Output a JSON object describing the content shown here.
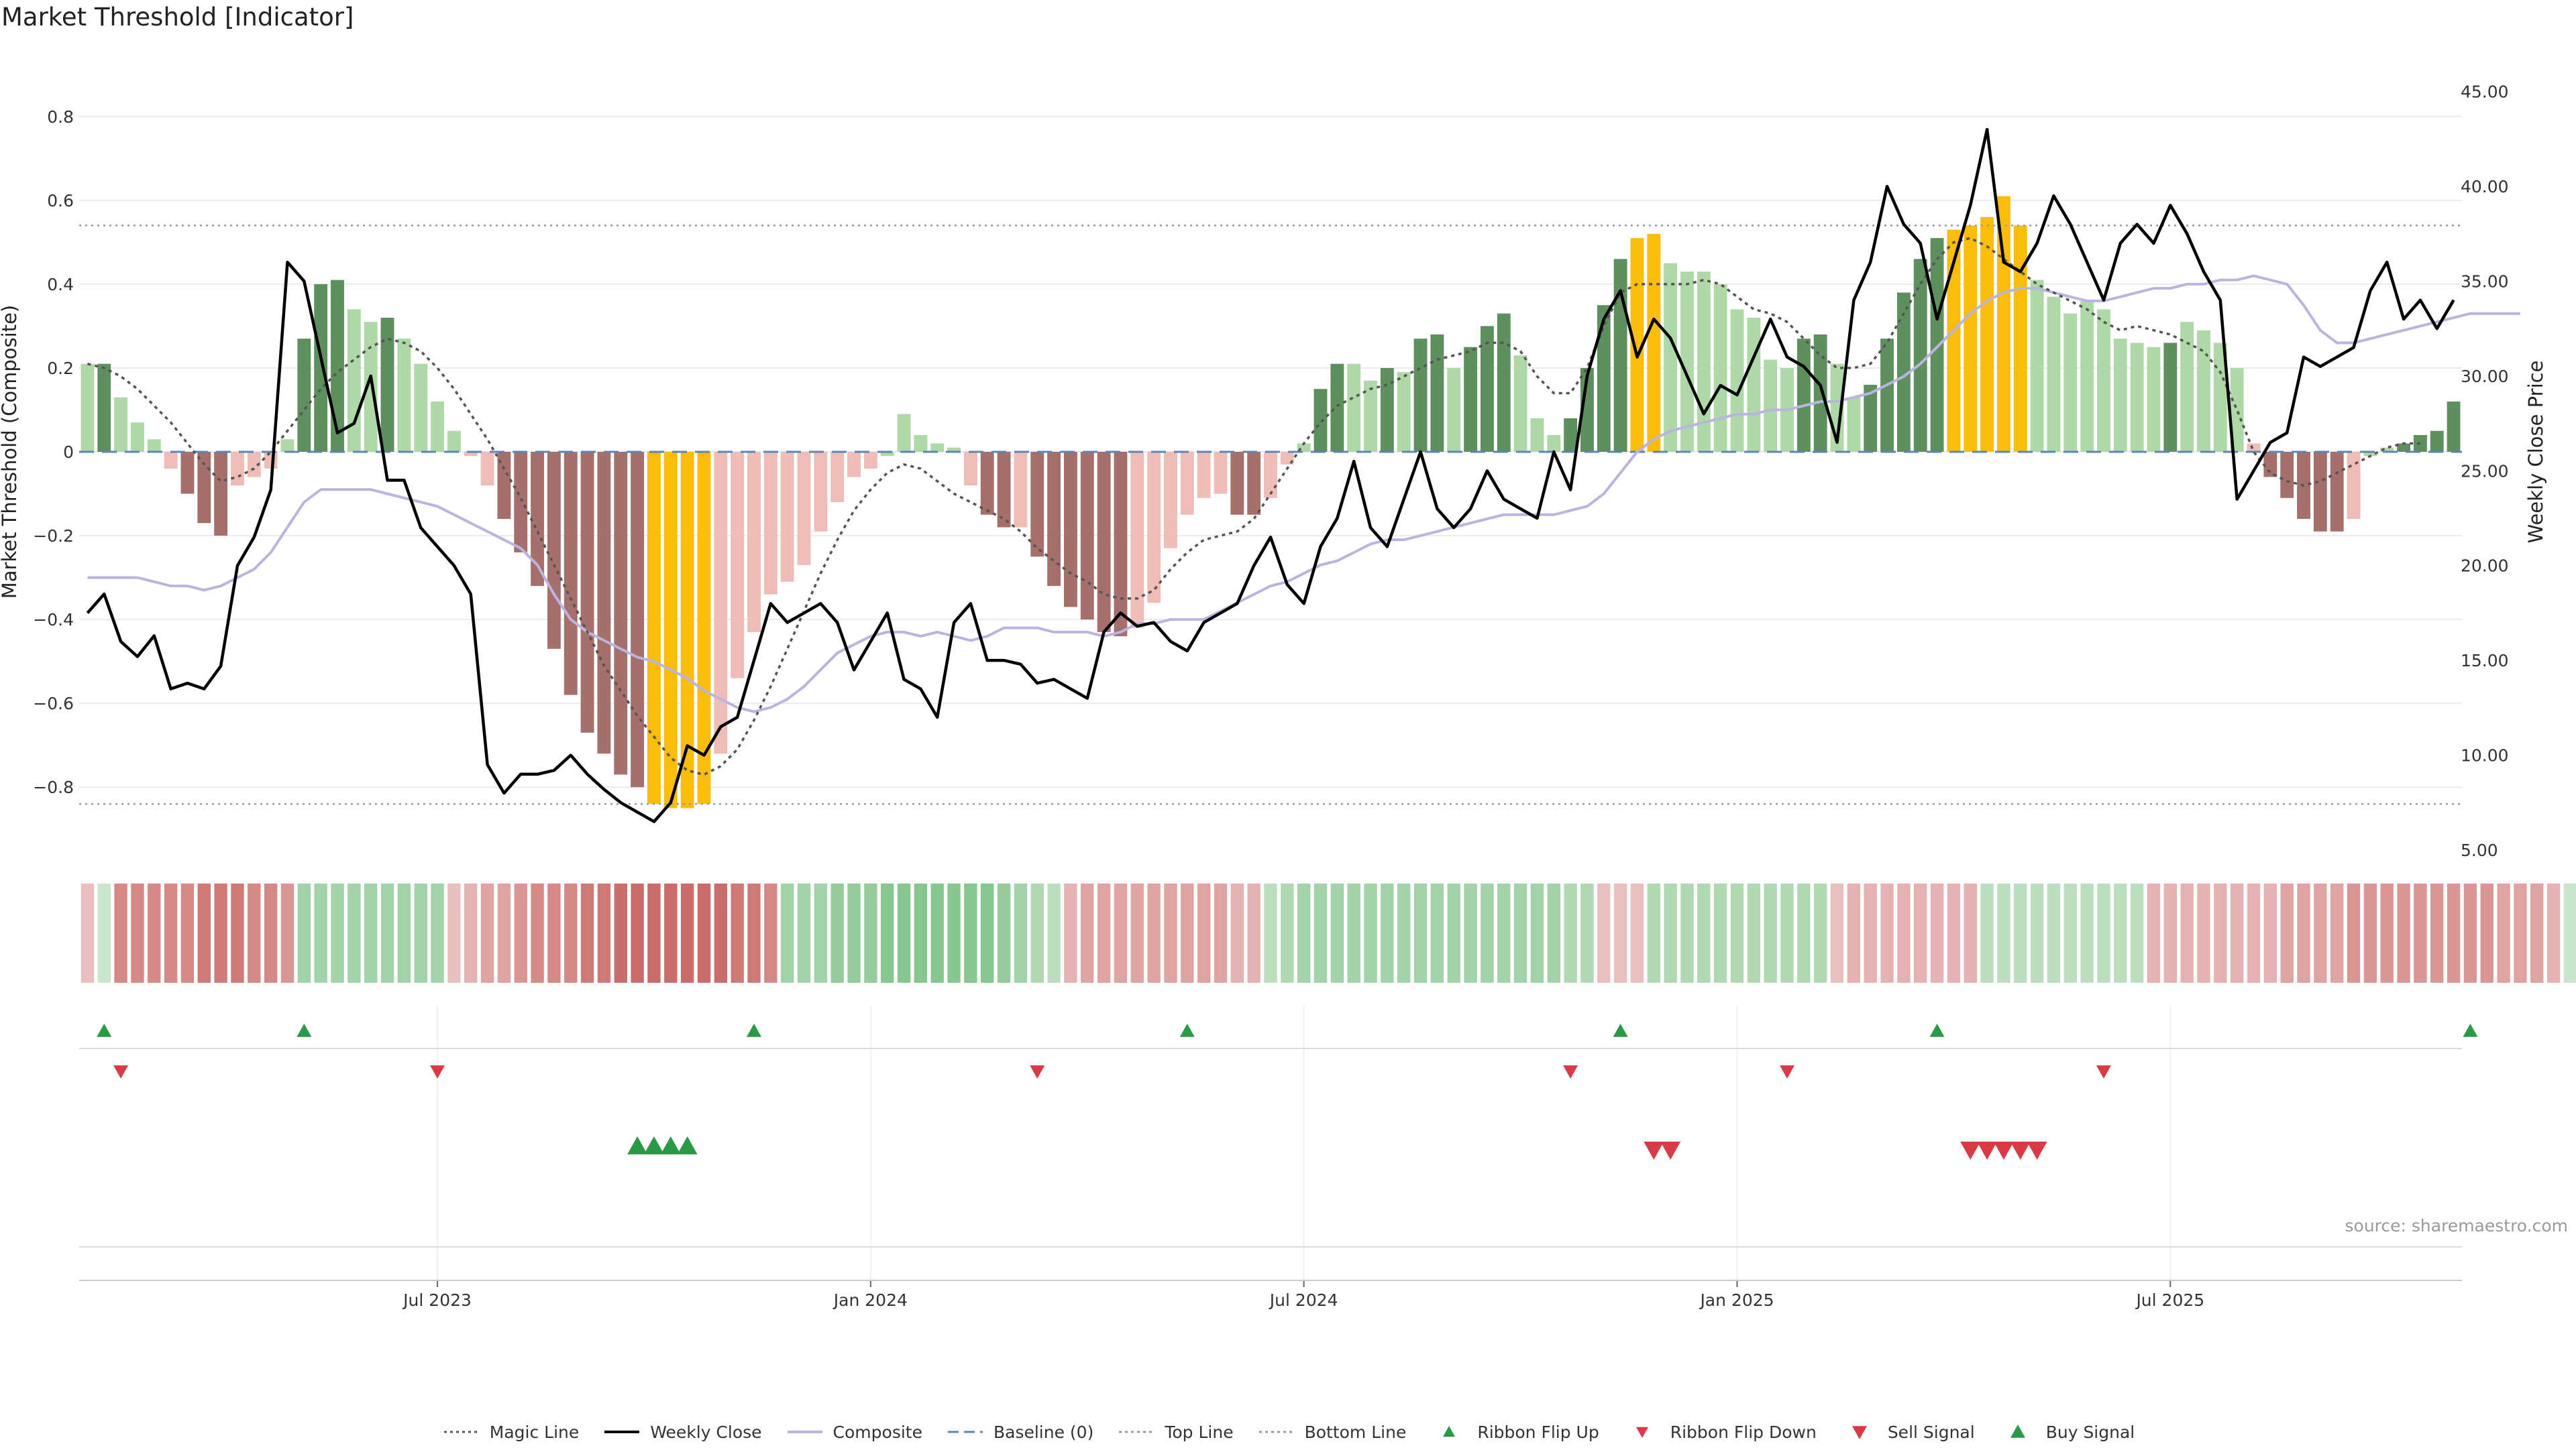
{
  "title": "Market Threshold [Indicator]",
  "source_note": "source: sharemaestro.com",
  "chart_data": {
    "type": "bar",
    "ylabel_left": "Market Threshold (Composite)",
    "ylabel_right": "Weekly Close Price",
    "ylim_left": [
      -0.95,
      0.95
    ],
    "ylim_right": [
      5,
      47
    ],
    "yticks_left": [
      "0.8",
      "0.6",
      "0.4",
      "0.2",
      "0",
      "−0.2",
      "−0.4",
      "−0.6",
      "−0.8"
    ],
    "yticks_left_values": [
      0.8,
      0.6,
      0.4,
      0.2,
      0,
      -0.2,
      -0.4,
      -0.6,
      -0.8
    ],
    "yticks_right": [
      "45.00",
      "40.00",
      "35.00",
      "30.00",
      "25.00",
      "20.00",
      "15.00",
      "10.00",
      "5.00"
    ],
    "yticks_right_values": [
      45,
      40,
      35,
      30,
      25,
      20,
      15,
      10,
      5
    ],
    "xticks": [
      "Jul 2023",
      "Jan 2024",
      "Jul 2024",
      "Jan 2025",
      "Jul 2025"
    ],
    "xtick_week_index": [
      21,
      47,
      73,
      99,
      125
    ],
    "top_line": 0.54,
    "bottom_line": -0.84,
    "baseline": 0,
    "colors": {
      "strong_pos": "#5e8f5e",
      "weak_pos": "#aed8a6",
      "strong_neg": "#a56f6c",
      "weak_neg": "#eebdb8",
      "extreme": "#fbbd0b",
      "close_line": "#000000",
      "composite_line": "#b9b4e0",
      "magic_line": "#555555",
      "baseline": "#5b86b5",
      "ref_line": "#999999",
      "buy": "#2b9a47",
      "sell": "#d93a45"
    },
    "composite_bars": [
      0.21,
      0.21,
      0.13,
      0.07,
      0.03,
      -0.04,
      -0.1,
      -0.17,
      -0.2,
      -0.08,
      -0.06,
      -0.04,
      0.03,
      0.27,
      0.4,
      0.41,
      0.34,
      0.31,
      0.32,
      0.27,
      0.21,
      0.12,
      0.05,
      -0.01,
      -0.08,
      -0.16,
      -0.24,
      -0.32,
      -0.47,
      -0.58,
      -0.67,
      -0.72,
      -0.77,
      -0.8,
      -0.84,
      -0.85,
      -0.85,
      -0.84,
      -0.72,
      -0.54,
      -0.43,
      -0.34,
      -0.31,
      -0.27,
      -0.19,
      -0.12,
      -0.06,
      -0.04,
      -0.01,
      0.09,
      0.04,
      0.02,
      0.01,
      -0.08,
      -0.15,
      -0.18,
      -0.18,
      -0.25,
      -0.32,
      -0.37,
      -0.4,
      -0.43,
      -0.44,
      -0.42,
      -0.36,
      -0.23,
      -0.15,
      -0.11,
      -0.1,
      -0.15,
      -0.15,
      -0.11,
      -0.03,
      0.02,
      0.15,
      0.21,
      0.21,
      0.17,
      0.2,
      0.19,
      0.27,
      0.28,
      0.2,
      0.25,
      0.3,
      0.33,
      0.23,
      0.08,
      0.04,
      0.08,
      0.2,
      0.35,
      0.46,
      0.51,
      0.52,
      0.45,
      0.43,
      0.43,
      0.4,
      0.34,
      0.32,
      0.22,
      0.2,
      0.27,
      0.28,
      0.21,
      0.13,
      0.16,
      0.27,
      0.38,
      0.46,
      0.51,
      0.53,
      0.54,
      0.56,
      0.61,
      0.54,
      0.41,
      0.37,
      0.33,
      0.36,
      0.34,
      0.27,
      0.26,
      0.25,
      0.26,
      0.31,
      0.29,
      0.26,
      0.2,
      0.02,
      -0.06,
      -0.11,
      -0.16,
      -0.19,
      -0.19,
      -0.16,
      -0.01,
      0.01,
      0.02,
      0.04,
      0.05,
      0.12
    ],
    "bar_class": [
      "w",
      "s",
      "w",
      "w",
      "w",
      "wn",
      "sn",
      "sn",
      "sn",
      "wn",
      "wn",
      "wn",
      "w",
      "s",
      "s",
      "s",
      "w",
      "w",
      "s",
      "w",
      "w",
      "w",
      "w",
      "wn",
      "wn",
      "sn",
      "sn",
      "sn",
      "sn",
      "sn",
      "sn",
      "sn",
      "sn",
      "sn",
      "e",
      "e",
      "e",
      "e",
      "wn",
      "wn",
      "wn",
      "wn",
      "wn",
      "wn",
      "wn",
      "wn",
      "wn",
      "wn",
      "w",
      "w",
      "w",
      "w",
      "w",
      "wn",
      "sn",
      "sn",
      "wn",
      "sn",
      "sn",
      "sn",
      "sn",
      "sn",
      "sn",
      "wn",
      "wn",
      "wn",
      "wn",
      "wn",
      "wn",
      "sn",
      "sn",
      "wn",
      "wn",
      "w",
      "s",
      "s",
      "w",
      "w",
      "s",
      "w",
      "s",
      "s",
      "w",
      "s",
      "s",
      "s",
      "w",
      "w",
      "w",
      "s",
      "s",
      "s",
      "s",
      "e",
      "e",
      "w",
      "w",
      "w",
      "w",
      "w",
      "w",
      "w",
      "w",
      "s",
      "s",
      "w",
      "w",
      "s",
      "s",
      "s",
      "s",
      "s",
      "e",
      "e",
      "e",
      "e",
      "e",
      "w",
      "w",
      "w",
      "w",
      "w",
      "w",
      "w",
      "w",
      "s",
      "w",
      "w",
      "w",
      "w",
      "wn",
      "sn",
      "sn",
      "sn",
      "sn",
      "sn",
      "wn",
      "w",
      "w",
      "s",
      "s",
      "s",
      "s"
    ],
    "weekly_close": [
      17.5,
      18.5,
      16.0,
      15.2,
      16.3,
      13.5,
      13.8,
      13.5,
      14.7,
      20.0,
      21.5,
      24.0,
      36.0,
      35.0,
      31.0,
      27.0,
      27.5,
      30.0,
      24.5,
      24.5,
      22.0,
      21.0,
      20.0,
      18.5,
      9.5,
      8.0,
      9.0,
      9.0,
      9.2,
      10.0,
      9.0,
      8.2,
      7.5,
      7.0,
      6.5,
      7.5,
      10.5,
      10.0,
      11.5,
      12.0,
      15.0,
      18.0,
      17.0,
      17.5,
      18.0,
      17.0,
      14.5,
      16.0,
      17.5,
      14.0,
      13.5,
      12.0,
      17.0,
      18.0,
      15.0,
      15.0,
      14.8,
      13.8,
      14.0,
      13.5,
      13.0,
      16.5,
      17.5,
      16.8,
      17.0,
      16.0,
      15.5,
      17.0,
      17.5,
      18.0,
      20.0,
      21.5,
      19.0,
      18.0,
      21.0,
      22.5,
      25.5,
      22.0,
      21.0,
      23.5,
      26.0,
      23.0,
      22.0,
      23.0,
      25.0,
      23.5,
      23.0,
      22.5,
      26.0,
      24.0,
      30.0,
      33.0,
      34.5,
      31.0,
      33.0,
      32.0,
      30.0,
      28.0,
      29.5,
      29.0,
      31.0,
      33.0,
      31.0,
      30.5,
      29.5,
      26.5,
      34.0,
      36.0,
      40.0,
      38.0,
      37.0,
      33.0,
      36.0,
      39.0,
      43.0,
      36.0,
      35.5,
      37.0,
      39.5,
      38.0,
      36.0,
      34.0,
      37.0,
      38.0,
      37.0,
      39.0,
      37.5,
      35.5,
      34.0,
      23.5,
      25.0,
      26.5,
      27.0,
      31.0,
      30.5,
      31.0,
      31.5,
      34.5,
      36.0,
      33.0,
      34.0,
      32.5,
      34.0
    ],
    "composite_line": [
      -0.3,
      -0.3,
      -0.3,
      -0.3,
      -0.31,
      -0.32,
      -0.32,
      -0.33,
      -0.32,
      -0.3,
      -0.28,
      -0.24,
      -0.18,
      -0.12,
      -0.09,
      -0.09,
      -0.09,
      -0.09,
      -0.1,
      -0.11,
      -0.12,
      -0.13,
      -0.15,
      -0.17,
      -0.19,
      -0.21,
      -0.23,
      -0.27,
      -0.34,
      -0.4,
      -0.43,
      -0.45,
      -0.47,
      -0.49,
      -0.5,
      -0.52,
      -0.54,
      -0.57,
      -0.59,
      -0.61,
      -0.62,
      -0.61,
      -0.59,
      -0.56,
      -0.52,
      -0.48,
      -0.46,
      -0.44,
      -0.43,
      -0.43,
      -0.44,
      -0.43,
      -0.44,
      -0.45,
      -0.44,
      -0.42,
      -0.42,
      -0.42,
      -0.43,
      -0.43,
      -0.43,
      -0.44,
      -0.43,
      -0.41,
      -0.41,
      -0.4,
      -0.4,
      -0.4,
      -0.38,
      -0.36,
      -0.34,
      -0.32,
      -0.31,
      -0.29,
      -0.27,
      -0.26,
      -0.24,
      -0.22,
      -0.21,
      -0.21,
      -0.2,
      -0.19,
      -0.18,
      -0.17,
      -0.16,
      -0.15,
      -0.15,
      -0.15,
      -0.15,
      -0.14,
      -0.13,
      -0.1,
      -0.05,
      0.0,
      0.03,
      0.05,
      0.06,
      0.07,
      0.08,
      0.09,
      0.09,
      0.1,
      0.1,
      0.11,
      0.12,
      0.12,
      0.13,
      0.14,
      0.16,
      0.18,
      0.21,
      0.25,
      0.29,
      0.33,
      0.36,
      0.38,
      0.39,
      0.39,
      0.38,
      0.37,
      0.36,
      0.36,
      0.37,
      0.38,
      0.39,
      0.39,
      0.4,
      0.4,
      0.41,
      0.41,
      0.42,
      0.41,
      0.4,
      0.35,
      0.29,
      0.26,
      0.26,
      0.27,
      0.28,
      0.29,
      0.3,
      0.31,
      0.32,
      0.33,
      0.33,
      0.33,
      0.33
    ],
    "magic_line": [
      0.21,
      0.2,
      0.18,
      0.15,
      0.11,
      0.07,
      0.02,
      -0.03,
      -0.07,
      -0.06,
      -0.04,
      0.0,
      0.05,
      0.1,
      0.15,
      0.19,
      0.22,
      0.25,
      0.27,
      0.26,
      0.24,
      0.2,
      0.15,
      0.09,
      0.03,
      -0.04,
      -0.11,
      -0.19,
      -0.27,
      -0.35,
      -0.43,
      -0.51,
      -0.57,
      -0.63,
      -0.68,
      -0.73,
      -0.76,
      -0.77,
      -0.75,
      -0.71,
      -0.64,
      -0.56,
      -0.47,
      -0.38,
      -0.29,
      -0.21,
      -0.14,
      -0.09,
      -0.05,
      -0.03,
      -0.04,
      -0.07,
      -0.1,
      -0.12,
      -0.14,
      -0.16,
      -0.19,
      -0.23,
      -0.26,
      -0.29,
      -0.31,
      -0.34,
      -0.35,
      -0.35,
      -0.33,
      -0.28,
      -0.24,
      -0.21,
      -0.2,
      -0.19,
      -0.16,
      -0.1,
      -0.04,
      0.02,
      0.07,
      0.11,
      0.13,
      0.15,
      0.16,
      0.18,
      0.2,
      0.22,
      0.23,
      0.24,
      0.26,
      0.26,
      0.24,
      0.18,
      0.14,
      0.14,
      0.2,
      0.3,
      0.38,
      0.4,
      0.4,
      0.4,
      0.4,
      0.41,
      0.4,
      0.37,
      0.34,
      0.33,
      0.31,
      0.27,
      0.23,
      0.2,
      0.2,
      0.21,
      0.26,
      0.33,
      0.4,
      0.46,
      0.5,
      0.51,
      0.49,
      0.46,
      0.43,
      0.4,
      0.38,
      0.36,
      0.34,
      0.31,
      0.29,
      0.3,
      0.29,
      0.28,
      0.26,
      0.24,
      0.19,
      0.1,
      0.0,
      -0.05,
      -0.07,
      -0.08,
      -0.07,
      -0.05,
      -0.03,
      -0.01,
      0.01,
      0.02,
      0.02
    ],
    "ribbon_levels": [
      -0.2,
      0.2,
      -0.6,
      -0.6,
      -0.6,
      -0.6,
      -0.6,
      -0.7,
      -0.7,
      -0.7,
      -0.6,
      -0.6,
      -0.5,
      0.5,
      0.5,
      0.5,
      0.5,
      0.5,
      0.5,
      0.5,
      0.5,
      0.5,
      -0.2,
      -0.3,
      -0.4,
      -0.4,
      -0.5,
      -0.6,
      -0.6,
      -0.6,
      -0.7,
      -0.7,
      -0.8,
      -0.8,
      -0.8,
      -0.8,
      -0.8,
      -0.8,
      -0.8,
      -0.7,
      -0.7,
      -0.6,
      0.5,
      0.5,
      0.5,
      0.6,
      0.6,
      0.6,
      0.7,
      0.7,
      0.7,
      0.7,
      0.7,
      0.7,
      0.7,
      0.6,
      0.5,
      0.4,
      0.3,
      -0.3,
      -0.4,
      -0.4,
      -0.4,
      -0.4,
      -0.4,
      -0.4,
      -0.4,
      -0.4,
      -0.4,
      -0.3,
      -0.3,
      0.3,
      0.4,
      0.5,
      0.5,
      0.5,
      0.5,
      0.5,
      0.5,
      0.5,
      0.5,
      0.5,
      0.5,
      0.5,
      0.5,
      0.5,
      0.5,
      0.5,
      0.5,
      0.4,
      0.4,
      -0.2,
      -0.2,
      -0.2,
      0.4,
      0.4,
      0.4,
      0.4,
      0.4,
      0.4,
      0.4,
      0.4,
      0.4,
      0.4,
      0.4,
      -0.2,
      -0.3,
      -0.3,
      -0.3,
      -0.3,
      -0.3,
      -0.3,
      -0.3,
      -0.3,
      0.3,
      0.3,
      0.3,
      0.3,
      0.3,
      0.3,
      0.3,
      0.3,
      0.3,
      0.3,
      -0.3,
      -0.3,
      -0.3,
      -0.3,
      -0.3,
      -0.3,
      -0.3,
      -0.3,
      -0.4,
      -0.4,
      -0.4,
      -0.4,
      -0.5,
      -0.5,
      -0.5,
      -0.5,
      -0.5,
      -0.5,
      -0.5,
      -0.5,
      -0.5,
      -0.4,
      -0.4,
      -0.4,
      -0.3,
      0.2
    ],
    "ribbon_flip_up": [
      1,
      13,
      40,
      66,
      92,
      111,
      143
    ],
    "ribbon_flip_down": [
      2,
      21,
      57,
      89,
      102,
      121
    ],
    "buy_signal": [
      33,
      34,
      35,
      36
    ],
    "sell_signal": [
      94,
      95,
      113,
      114,
      115,
      116,
      117
    ]
  },
  "legend": [
    {
      "label": "Magic Line",
      "kind": "dotted",
      "color": "#555555"
    },
    {
      "label": "Weekly Close",
      "kind": "solid",
      "color": "#000000"
    },
    {
      "label": "Composite",
      "kind": "solid",
      "color": "#b9b4e0"
    },
    {
      "label": "Baseline (0)",
      "kind": "dashed",
      "color": "#5b86b5"
    },
    {
      "label": "Top Line",
      "kind": "dotted",
      "color": "#999999"
    },
    {
      "label": "Bottom Line",
      "kind": "dotted",
      "color": "#999999"
    },
    {
      "label": "Ribbon Flip Up",
      "kind": "tri-up",
      "color": "#2b9a47"
    },
    {
      "label": "Ribbon Flip Down",
      "kind": "tri-down",
      "color": "#d93a45"
    },
    {
      "label": "Sell Signal",
      "kind": "tri-down-big",
      "color": "#d93a45"
    },
    {
      "label": "Buy Signal",
      "kind": "tri-up-big",
      "color": "#2b9a47"
    }
  ]
}
